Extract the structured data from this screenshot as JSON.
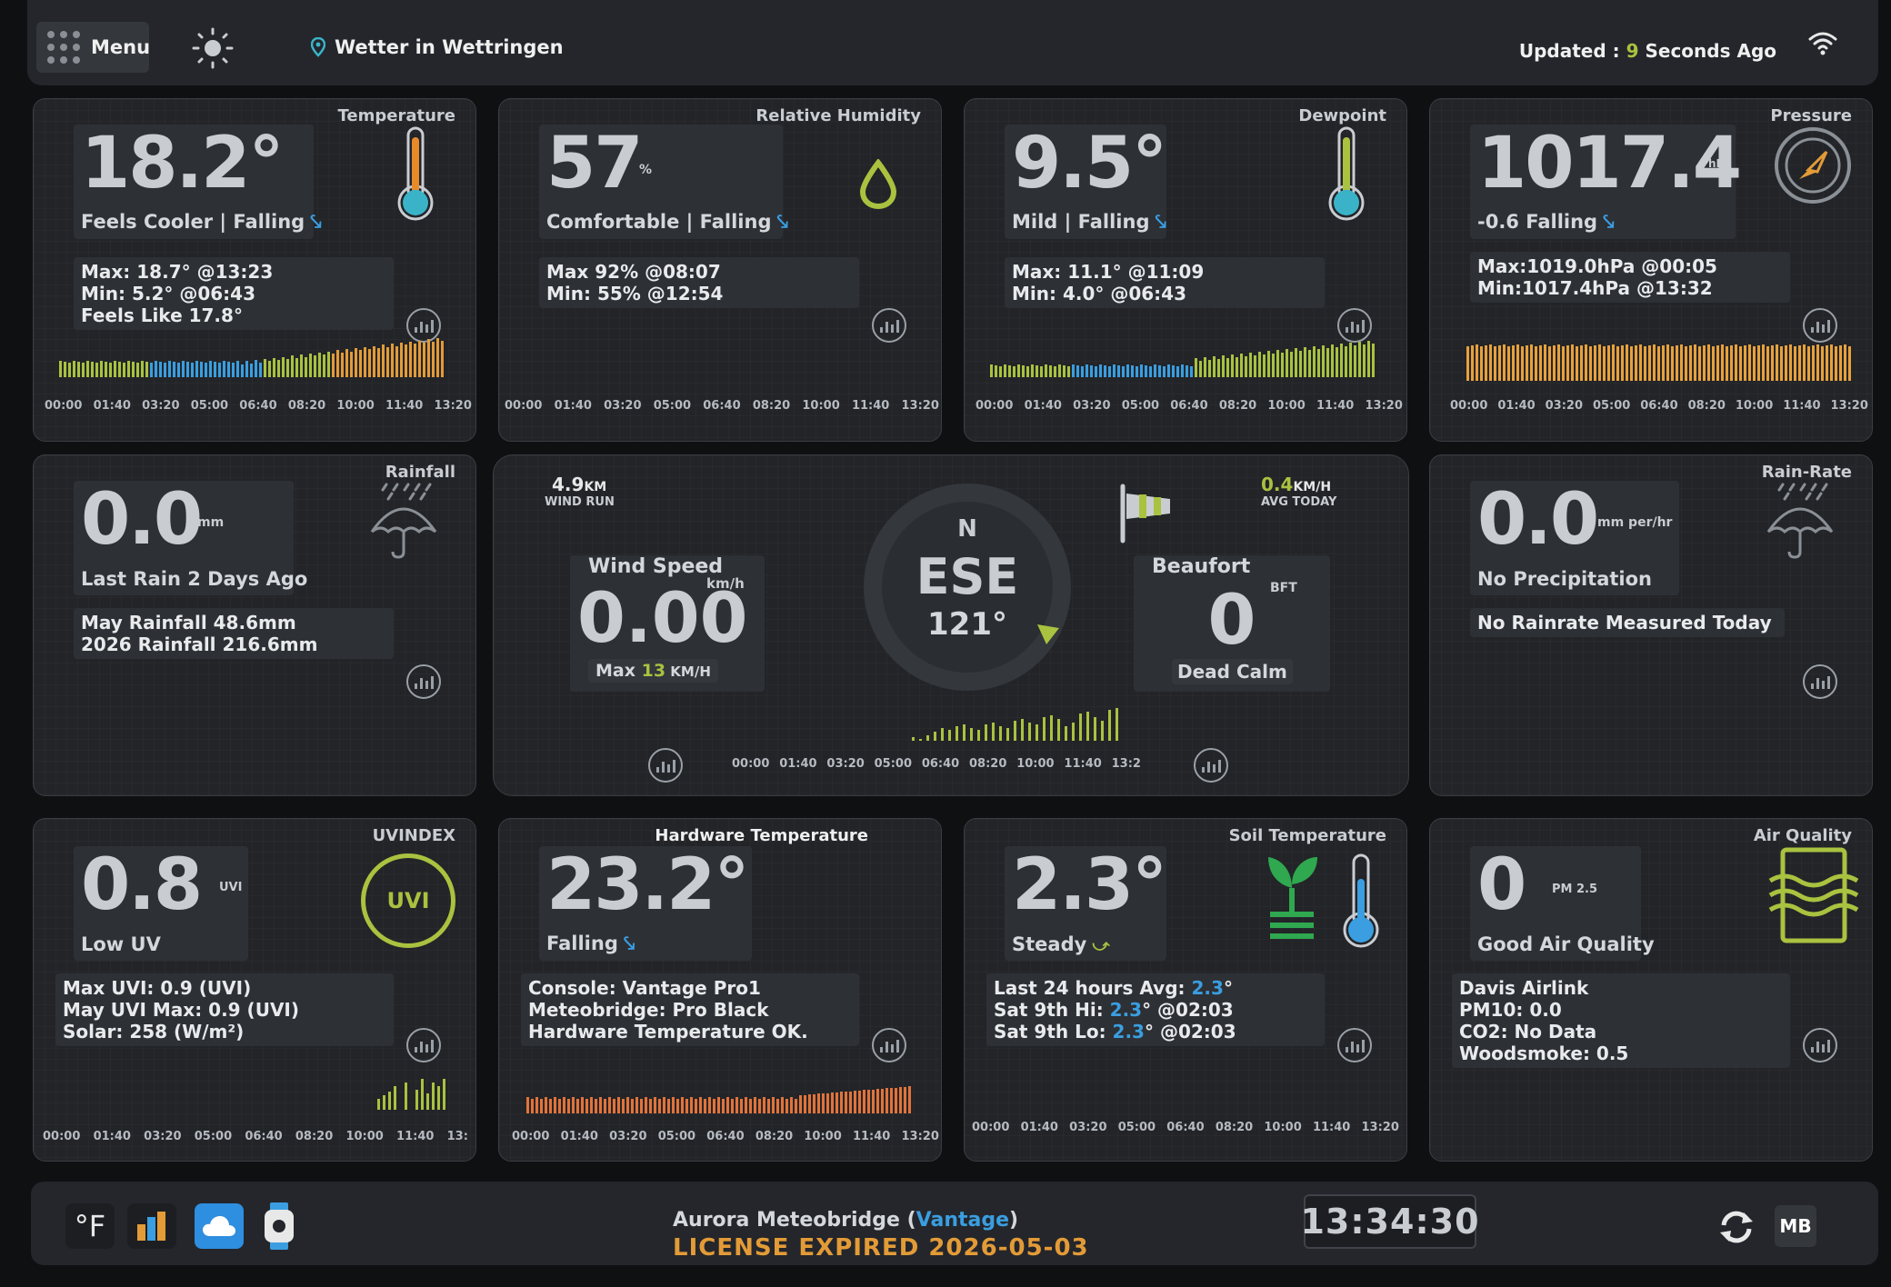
{
  "topbar": {
    "menu_label": "Menu",
    "location": "Wetter in Wettringen",
    "updated_prefix": "Updated : ",
    "updated_num": "9",
    "updated_suffix": " Seconds Ago"
  },
  "temperature": {
    "title": "Temperature",
    "value": "18.2°",
    "sub": "Feels Cooler | Falling",
    "max": "Max: 18.7° @13:23",
    "min": "Min: 5.2° @06:43",
    "feels": "Feels Like 17.8°"
  },
  "humidity": {
    "title": "Relative Humidity",
    "value": "57",
    "unit": "%",
    "sub": "Comfortable | Falling",
    "max": "Max 92% @08:07",
    "min": "Min: 55% @12:54"
  },
  "dewpoint": {
    "title": "Dewpoint",
    "value": "9.5°",
    "sub": "Mild | Falling",
    "max": "Max: 11.1° @11:09",
    "min": "Min: 4.0° @06:43"
  },
  "pressure": {
    "title": "Pressure",
    "value": "1017.4",
    "unit": "hPa",
    "sub": "-0.6 Falling",
    "max": "Max:1019.0hPa @00:05",
    "min": "Min:1017.4hPa @13:32"
  },
  "rainfall": {
    "title": "Rainfall",
    "value": "0.0",
    "unit": "mm",
    "sub": "Last Rain 2 Days Ago",
    "month": "May Rainfall 48.6mm",
    "year": "2026 Rainfall 216.6mm"
  },
  "wind": {
    "run_value": "4.9",
    "run_unit": "KM",
    "run_label": "WIND RUN",
    "avg_value": "0.4",
    "avg_unit": "KM/H",
    "avg_label": "AVG TODAY",
    "speed_label": "Wind Speed",
    "speed_unit": "km/h",
    "speed_value": "0.00",
    "max_prefix": "Max ",
    "max_value": "13",
    "max_unit": " KM/H",
    "compass_n": "N",
    "direction": "ESE",
    "degrees": "121°",
    "beaufort_label": "Beaufort",
    "beaufort_unit": "BFT",
    "beaufort_value": "0",
    "beaufort_desc": "Dead Calm",
    "wind_speed_history_kmh": [
      0.2,
      0.1,
      0.3,
      0.5,
      0.7,
      0.6,
      0.8,
      0.9,
      0.7,
      0.6,
      0.9,
      1.0,
      0.8,
      0.7,
      1.1,
      1.2,
      1.0,
      0.9,
      1.3,
      1.4,
      1.2,
      0.8,
      1.0,
      1.5,
      1.6,
      1.3,
      1.1,
      1.7,
      1.8
    ]
  },
  "rainrate": {
    "title": "Rain-Rate",
    "value": "0.0",
    "unit": "mm per/hr",
    "sub": "No Precipitation",
    "info": "No Rainrate Measured Today"
  },
  "uv": {
    "title": "UVINDEX",
    "value": "0.8",
    "unit": "UVI",
    "sub": "Low UV",
    "badge": "UVI",
    "max": "Max UVI: 0.9 (UVI)",
    "month_max": "May UVI Max: 0.9 (UVI)",
    "solar": "Solar: 258 (W/m²)"
  },
  "hardware": {
    "title": "Hardware Temperature",
    "value": "23.2°",
    "sub": "Falling",
    "console": "Console: Vantage Pro1",
    "bridge": "Meteobridge: Pro Black",
    "status": "Hardware Temperature OK."
  },
  "soil": {
    "title": "Soil Temperature",
    "value": "2.3°",
    "sub": "Steady",
    "avg_label": "Last 24 hours Avg: ",
    "avg_value": "2.3",
    "avg_suffix": "°",
    "hi_label": "Sat 9th Hi: ",
    "hi_value": "2.3",
    "hi_suffix": "° @02:03",
    "lo_label": "Sat 9th Lo: ",
    "lo_value": "2.3",
    "lo_suffix": "° @02:03"
  },
  "air": {
    "title": "Air Quality",
    "value": "0",
    "unit": "PM 2.5",
    "sub": "Good Air Quality",
    "l1": "Davis Airlink",
    "l2": "PM10: 0.0",
    "l3": "CO2: No Data",
    "l4": "Woodsmoke: 0.5"
  },
  "time_labels": [
    "00:00",
    "01:40",
    "03:20",
    "05:00",
    "06:40",
    "08:20",
    "10:00",
    "11:40",
    "13:20"
  ],
  "time_labels_uv": [
    "00:00",
    "01:40",
    "03:20",
    "05:00",
    "06:40",
    "08:20",
    "10:00",
    "11:40",
    "13:"
  ],
  "time_labels_wind": [
    "00:00",
    "01:40",
    "03:20",
    "05:00",
    "06:40",
    "08:20",
    "10:00",
    "11:40",
    "13:2"
  ],
  "footer": {
    "fahrenheit": "°F",
    "station_prefix": "Aurora Meteobridge (",
    "station_model": "Vantage",
    "station_suffix": ")",
    "license": "LICENSE EXPIRED 2026-05-03",
    "clock": "13:34:30",
    "mb_badge": "MB"
  },
  "colors": {
    "accent_green": "#a9c23f",
    "accent_blue": "#3a9ee0",
    "accent_orange": "#e39b37",
    "pressure_bars": "#e8a13b"
  }
}
